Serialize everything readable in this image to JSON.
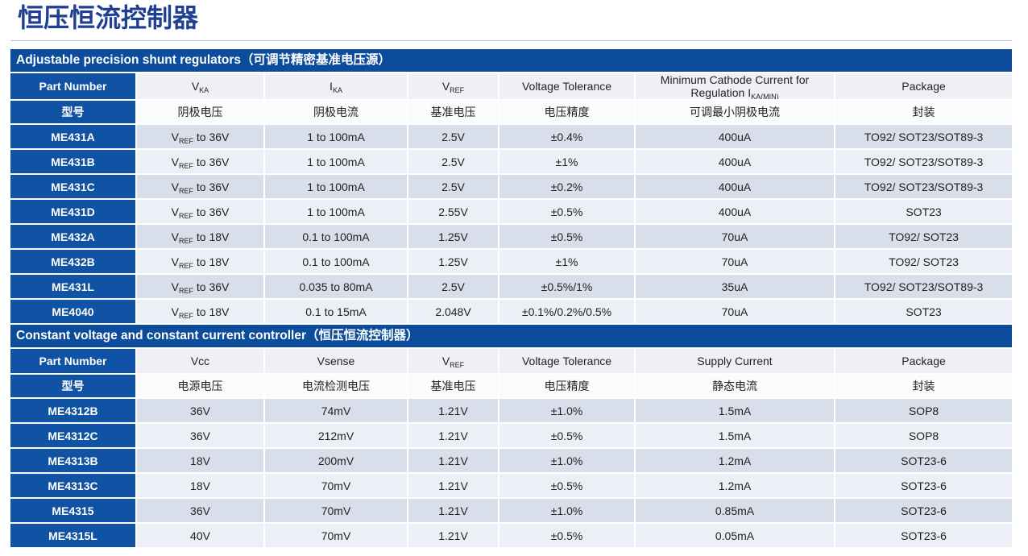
{
  "title": "恒压恒流控制器",
  "sections": [
    {
      "heading": "Adjustable precision shunt regulators（可调节精密基准电压源）",
      "header_en": [
        "Part Number",
        [
          {
            "text": "V"
          },
          {
            "sub": "KA"
          }
        ],
        [
          {
            "text": "I"
          },
          {
            "sub": "KA"
          }
        ],
        [
          {
            "text": "V"
          },
          {
            "sub": "REF"
          }
        ],
        "Voltage Tolerance",
        [
          {
            "text": "Minimum Cathode Current for Regulation I"
          },
          {
            "sub": "KA(MIN)"
          }
        ],
        "Package"
      ],
      "header_cn": [
        "型号",
        "阴极电压",
        "阴极电流",
        "基准电压",
        "电压精度",
        "可调最小阴极电流",
        "封装"
      ],
      "rows": [
        [
          "ME431A",
          [
            {
              "text": "V"
            },
            {
              "sub": "REF"
            },
            {
              "text": " to 36V"
            }
          ],
          "1 to 100mA",
          "2.5V",
          "±0.4%",
          "400uA",
          "TO92/ SOT23/SOT89-3"
        ],
        [
          "ME431B",
          [
            {
              "text": "V"
            },
            {
              "sub": "REF"
            },
            {
              "text": " to 36V"
            }
          ],
          "1 to 100mA",
          "2.5V",
          "±1%",
          "400uA",
          "TO92/ SOT23/SOT89-3"
        ],
        [
          "ME431C",
          [
            {
              "text": "V"
            },
            {
              "sub": "REF"
            },
            {
              "text": " to 36V"
            }
          ],
          "1 to 100mA",
          "2.5V",
          "±0.2%",
          "400uA",
          "TO92/ SOT23/SOT89-3"
        ],
        [
          "ME431D",
          [
            {
              "text": "V"
            },
            {
              "sub": "REF"
            },
            {
              "text": " to 36V"
            }
          ],
          "1 to 100mA",
          "2.55V",
          "±0.5%",
          "400uA",
          "SOT23"
        ],
        [
          "ME432A",
          [
            {
              "text": "V"
            },
            {
              "sub": "REF"
            },
            {
              "text": " to 18V"
            }
          ],
          "0.1 to 100mA",
          "1.25V",
          "±0.5%",
          "70uA",
          "TO92/ SOT23"
        ],
        [
          "ME432B",
          [
            {
              "text": "V"
            },
            {
              "sub": "REF"
            },
            {
              "text": " to 18V"
            }
          ],
          "0.1 to 100mA",
          "1.25V",
          "±1%",
          "70uA",
          "TO92/ SOT23"
        ],
        [
          "ME431L",
          [
            {
              "text": "V"
            },
            {
              "sub": "REF"
            },
            {
              "text": " to 36V"
            }
          ],
          "0.035 to 80mA",
          "2.5V",
          "±0.5%/1%",
          "35uA",
          "TO92/ SOT23/SOT89-3"
        ],
        [
          "ME4040",
          [
            {
              "text": "V"
            },
            {
              "sub": "REF"
            },
            {
              "text": " to 18V"
            }
          ],
          "0.1 to 15mA",
          "2.048V",
          "±0.1%/0.2%/0.5%",
          "70uA",
          "SOT23"
        ]
      ]
    },
    {
      "heading": "Constant voltage and constant current controller（恒压恒流控制器）",
      "header_en": [
        "Part Number",
        "Vcc",
        "Vsense",
        [
          {
            "text": "V"
          },
          {
            "sub": "REF"
          }
        ],
        "Voltage Tolerance",
        "Supply Current",
        "Package"
      ],
      "header_cn": [
        "型号",
        "电源电压",
        "电流检测电压",
        "基准电压",
        "电压精度",
        "静态电流",
        "封装"
      ],
      "rows": [
        [
          "ME4312B",
          "36V",
          "74mV",
          "1.21V",
          "±1.0%",
          "1.5mA",
          "SOP8"
        ],
        [
          "ME4312C",
          "36V",
          "212mV",
          "1.21V",
          "±0.5%",
          "1.5mA",
          "SOP8"
        ],
        [
          "ME4313B",
          "18V",
          "200mV",
          "1.21V",
          "±1.0%",
          "1.2mA",
          "SOT23-6"
        ],
        [
          "ME4313C",
          "18V",
          "70mV",
          "1.21V",
          "±0.5%",
          "1.2mA",
          "SOT23-6"
        ],
        [
          "ME4315",
          "36V",
          "70mV",
          "1.21V",
          "±1.0%",
          "0.85mA",
          "SOT23-6"
        ],
        [
          "ME4315L",
          "40V",
          "70mV",
          "1.21V",
          "±0.5%",
          "0.05mA",
          "SOT23-6"
        ]
      ]
    }
  ]
}
